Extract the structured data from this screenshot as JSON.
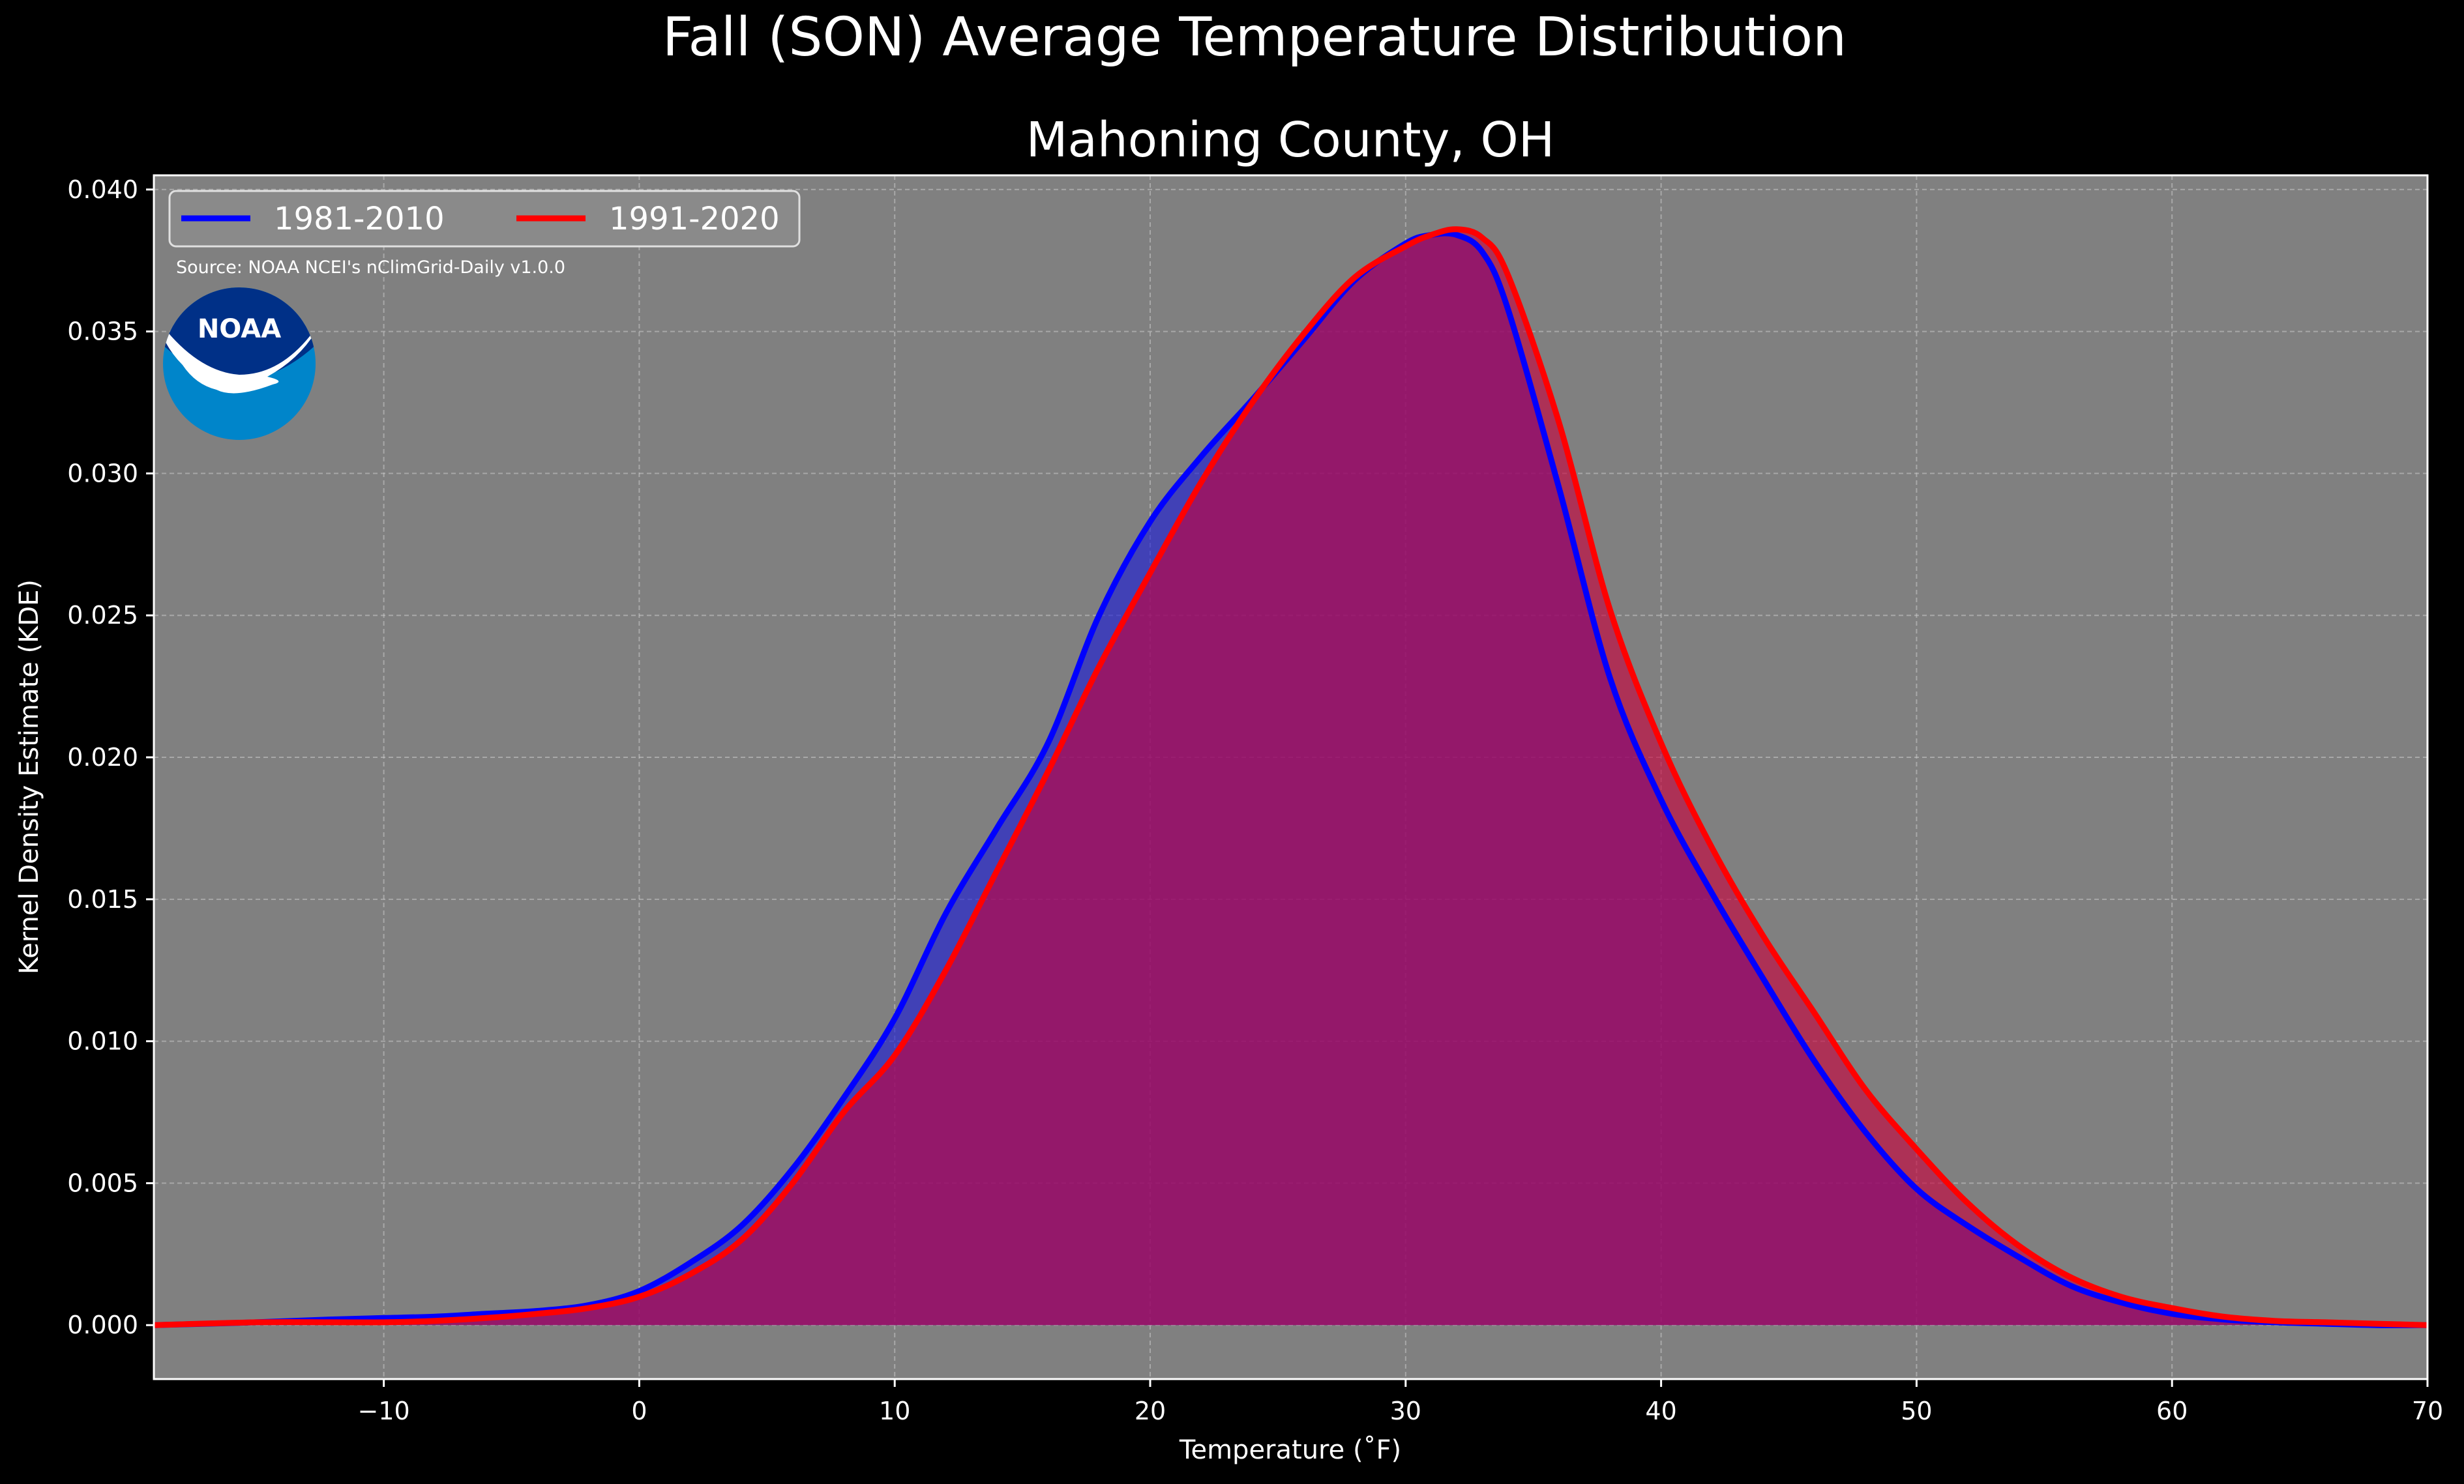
{
  "colors": {
    "background": "#000000",
    "plot_background": "#808080",
    "grid": "#c8c8c8",
    "text": "#ffffff",
    "series_1981": "#0000ff",
    "series_1991": "#ff0000",
    "fill_1981": "#1a1ad6",
    "fill_1991": "#c8003c",
    "noaa_outer": "#0085ca",
    "noaa_inner": "#003087"
  },
  "logo": {
    "icon": "noaa-logo",
    "text": "NOAA"
  },
  "chart_data": {
    "type": "area",
    "title": "Fall (SON) Average Temperature Distribution",
    "subtitle": "Mahoning County, OH",
    "xlabel": "Temperature (˚F)",
    "ylabel": "Kernel Density Estimate (KDE)",
    "xlim": [
      -19,
      70
    ],
    "ylim": [
      -0.0019,
      0.0405
    ],
    "xticks": [
      -10,
      0,
      10,
      20,
      30,
      40,
      50,
      60,
      70
    ],
    "xtick_labels": [
      "−10",
      "0",
      "10",
      "20",
      "30",
      "40",
      "50",
      "60",
      "70"
    ],
    "yticks": [
      0.0,
      0.005,
      0.01,
      0.015,
      0.02,
      0.025,
      0.03,
      0.035,
      0.04
    ],
    "ytick_labels": [
      "0.000",
      "0.005",
      "0.010",
      "0.015",
      "0.020",
      "0.025",
      "0.030",
      "0.035",
      "0.040"
    ],
    "grid": true,
    "legend_position": "top-left",
    "annotation": "Source: NOAA NCEI's nClimGrid-Daily v1.0.0",
    "series": [
      {
        "name": "1981-2010",
        "color": "#0000ff",
        "x": [
          -19,
          -15,
          -12,
          -10,
          -8,
          -6,
          -4,
          -2,
          0,
          2,
          4,
          6,
          8,
          10,
          12,
          14,
          16,
          18,
          20,
          22,
          24,
          26,
          28,
          30,
          31,
          32,
          33,
          34,
          36,
          38,
          40,
          42,
          44,
          46,
          48,
          50,
          52,
          54,
          56,
          58,
          60,
          62,
          64,
          66,
          68,
          70
        ],
        "y": [
          0.0,
          0.0001,
          0.0002,
          0.00025,
          0.0003,
          0.0004,
          0.0005,
          0.0007,
          0.0012,
          0.0022,
          0.0035,
          0.0055,
          0.008,
          0.0108,
          0.0145,
          0.0175,
          0.0205,
          0.025,
          0.0283,
          0.0306,
          0.0326,
          0.0347,
          0.0368,
          0.0381,
          0.0384,
          0.0384,
          0.0378,
          0.0358,
          0.0295,
          0.0228,
          0.0185,
          0.0152,
          0.0122,
          0.0093,
          0.0068,
          0.0048,
          0.0035,
          0.0024,
          0.0014,
          0.0008,
          0.0004,
          0.0002,
          0.0001,
          5e-05,
          0.0,
          0.0
        ]
      },
      {
        "name": "1991-2020",
        "color": "#ff0000",
        "x": [
          -19,
          -15,
          -12,
          -10,
          -8,
          -6,
          -4,
          -2,
          0,
          2,
          4,
          6,
          8,
          10,
          12,
          14,
          16,
          18,
          20,
          22,
          24,
          26,
          28,
          30,
          31,
          32,
          33,
          34,
          36,
          38,
          40,
          42,
          44,
          46,
          48,
          50,
          52,
          54,
          56,
          58,
          60,
          62,
          64,
          66,
          68,
          70
        ],
        "y": [
          0.0,
          0.0001,
          0.0001,
          0.0001,
          0.00015,
          0.00025,
          0.0004,
          0.0006,
          0.001,
          0.0018,
          0.003,
          0.005,
          0.0075,
          0.0095,
          0.0125,
          0.016,
          0.0195,
          0.0232,
          0.0265,
          0.0297,
          0.0325,
          0.0349,
          0.0369,
          0.038,
          0.0384,
          0.0386,
          0.0383,
          0.037,
          0.0318,
          0.0252,
          0.0205,
          0.0168,
          0.0137,
          0.011,
          0.0083,
          0.0062,
          0.0043,
          0.0028,
          0.0017,
          0.001,
          0.0006,
          0.0003,
          0.00015,
          0.0001,
          5e-05,
          0.0
        ]
      }
    ]
  }
}
